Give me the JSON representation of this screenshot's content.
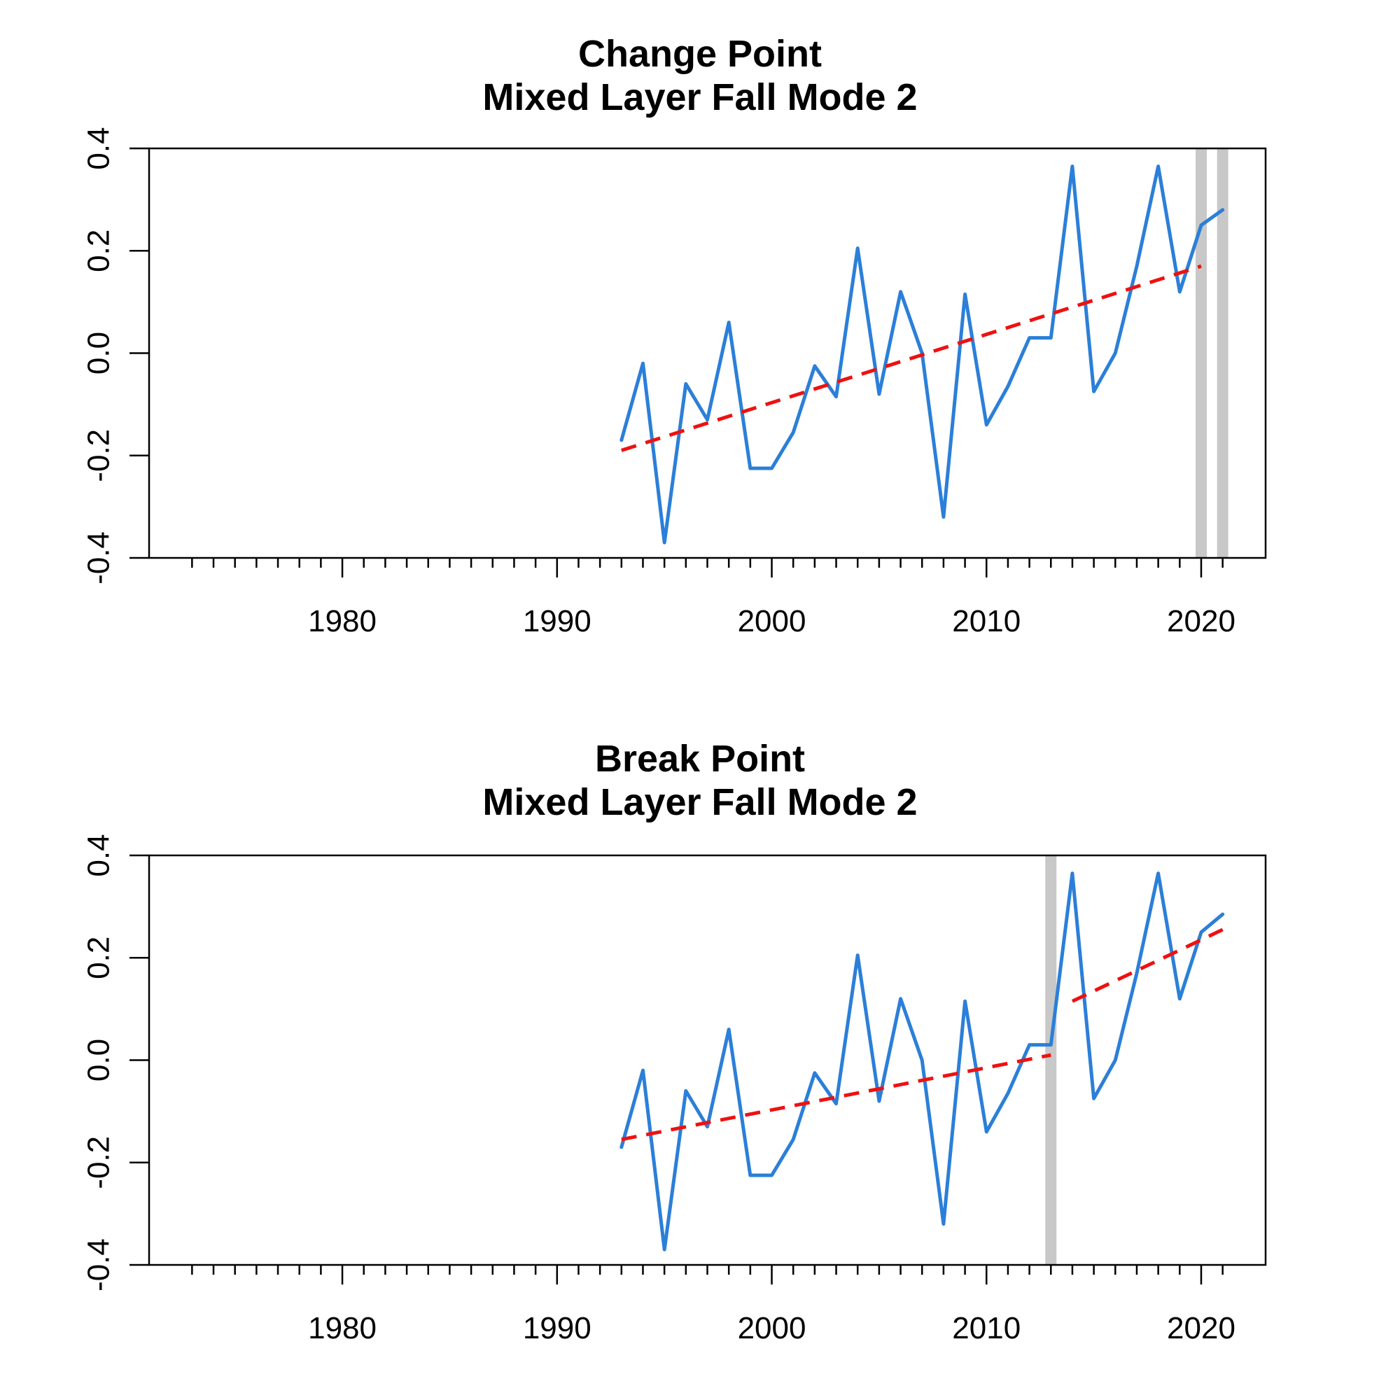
{
  "colors": {
    "series": "#2b7fd8",
    "trend": "#ee1111",
    "changepoint": "#c8c8c8"
  },
  "chart_data": [
    {
      "type": "line",
      "title": "Change Point",
      "subtitle": "Mixed Layer Fall Mode 2",
      "xlim": [
        1971,
        2023
      ],
      "ylim": [
        -0.4,
        0.4
      ],
      "x_ticks": [
        1980,
        1990,
        2000,
        2010,
        2020
      ],
      "y_ticks": [
        -0.4,
        -0.2,
        0.0,
        0.2,
        0.4
      ],
      "y_tick_labels": [
        "-0.4",
        "-0.2",
        "0.0",
        "0.2",
        "0.4"
      ],
      "grid": false,
      "x": [
        1993,
        1994,
        1995,
        1996,
        1997,
        1998,
        1999,
        2000,
        2001,
        2002,
        2003,
        2004,
        2005,
        2006,
        2007,
        2008,
        2009,
        2010,
        2011,
        2012,
        2013,
        2014,
        2015,
        2016,
        2017,
        2018,
        2019,
        2020,
        2021
      ],
      "values": [
        -0.17,
        -0.02,
        -0.37,
        -0.06,
        -0.13,
        0.06,
        -0.225,
        -0.225,
        -0.155,
        -0.025,
        -0.085,
        0.205,
        -0.08,
        0.12,
        0.0,
        -0.32,
        0.115,
        -0.14,
        -0.065,
        0.03,
        0.03,
        0.365,
        -0.075,
        0.0,
        0.17,
        0.365,
        0.12,
        0.25,
        0.28
      ],
      "trend": {
        "x": [
          1993,
          2020
        ],
        "y": [
          -0.19,
          0.17
        ]
      },
      "change_points": [
        2020,
        2021
      ]
    },
    {
      "type": "line",
      "title": "Break Point",
      "subtitle": "Mixed Layer Fall Mode 2",
      "xlim": [
        1971,
        2023
      ],
      "ylim": [
        -0.4,
        0.4
      ],
      "x_ticks": [
        1980,
        1990,
        2000,
        2010,
        2020
      ],
      "y_ticks": [
        -0.4,
        -0.2,
        0.0,
        0.2,
        0.4
      ],
      "y_tick_labels": [
        "-0.4",
        "-0.2",
        "0.0",
        "0.2",
        "0.4"
      ],
      "grid": false,
      "x": [
        1993,
        1994,
        1995,
        1996,
        1997,
        1998,
        1999,
        2000,
        2001,
        2002,
        2003,
        2004,
        2005,
        2006,
        2007,
        2008,
        2009,
        2010,
        2011,
        2012,
        2013,
        2014,
        2015,
        2016,
        2017,
        2018,
        2019,
        2020,
        2021
      ],
      "values": [
        -0.17,
        -0.02,
        -0.37,
        -0.06,
        -0.13,
        0.06,
        -0.225,
        -0.225,
        -0.155,
        -0.025,
        -0.085,
        0.205,
        -0.08,
        0.12,
        0.0,
        -0.32,
        0.115,
        -0.14,
        -0.065,
        0.03,
        0.03,
        0.365,
        -0.075,
        0.0,
        0.17,
        0.365,
        0.12,
        0.25,
        0.285
      ],
      "trend_segments": [
        {
          "x": [
            1993,
            2013
          ],
          "y": [
            -0.155,
            0.01
          ]
        },
        {
          "x": [
            2014,
            2021
          ],
          "y": [
            0.115,
            0.255
          ]
        }
      ],
      "change_points": [
        2013
      ]
    }
  ]
}
